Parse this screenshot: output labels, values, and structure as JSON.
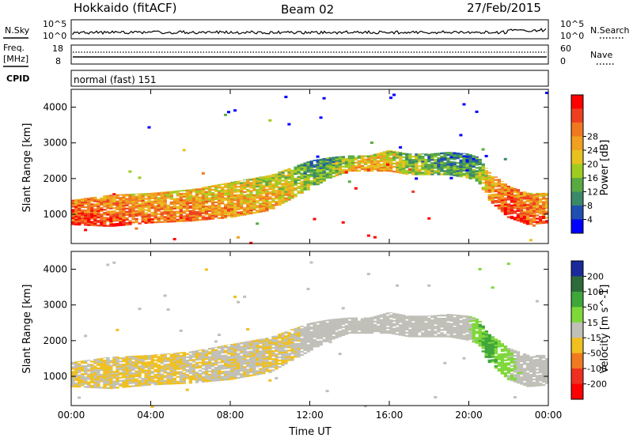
{
  "header": {
    "station": "Hokkaido (fitACF)",
    "beam": "Beam 02",
    "date": "27/Feb/2015"
  },
  "noise_panel": {
    "label_left": "N.Sky",
    "label_right": "N.Search",
    "left_ticks": [
      "10^5",
      "10^0"
    ],
    "right_ticks": [
      "10^5",
      "10^0"
    ]
  },
  "freq_panel": {
    "label_left_1": "Freq.",
    "label_left_2": "[MHz]",
    "label_right": "Nave",
    "left_ticks": [
      "18",
      "8"
    ],
    "right_ticks": [
      "60",
      "0"
    ]
  },
  "cpid_panel": {
    "label": "CPID",
    "mode_text": "normal (fast) 151"
  },
  "chart_data": [
    {
      "type": "heatmap",
      "quantity": "Power",
      "ylabel": "Slant Range [km]",
      "colorbar_label": "Power [dB]",
      "colorbar_ticks": [
        "4",
        "8",
        "12",
        "16",
        "20",
        "24",
        "28"
      ],
      "colorbar_colors": [
        "#0000ff",
        "#1f4fb0",
        "#3a8a6a",
        "#5aaa44",
        "#a0cc22",
        "#e8c020",
        "#f0a020",
        "#f07820",
        "#ee4020",
        "#ff0000"
      ],
      "ylim": [
        180,
        4500
      ],
      "y_ticks": [
        "1000",
        "2000",
        "3000",
        "4000"
      ],
      "x_ticks": [
        "00:00",
        "04:00",
        "08:00",
        "12:00",
        "16:00",
        "20:00",
        "00:00"
      ],
      "echo_band": {
        "time_hours": [
          0,
          2,
          4,
          6,
          8,
          10,
          11,
          12,
          13,
          14,
          15,
          16,
          17,
          18,
          19,
          20,
          20.5,
          21,
          22,
          23,
          24
        ],
        "lower_km": [
          700,
          650,
          750,
          800,
          900,
          1100,
          1400,
          1700,
          2000,
          2200,
          2200,
          2200,
          2100,
          2100,
          2100,
          2000,
          1900,
          1400,
          900,
          700,
          750
        ],
        "upper_km": [
          1400,
          1550,
          1600,
          1700,
          1900,
          2100,
          2300,
          2500,
          2600,
          2650,
          2650,
          2800,
          2700,
          2700,
          2750,
          2700,
          2600,
          2200,
          1800,
          1600,
          1600
        ],
        "power_db": [
          28,
          26,
          24,
          24,
          22,
          20,
          18,
          14,
          14,
          18,
          22,
          20,
          16,
          14,
          12,
          12,
          14,
          22,
          28,
          26,
          24
        ]
      }
    },
    {
      "type": "heatmap",
      "quantity": "Velocity",
      "ylabel": "Slant Range [km]",
      "colorbar_label": "Velocity [m s^-1]",
      "colorbar_ticks": [
        "200",
        "100",
        "50",
        "15",
        "-15",
        "-50",
        "-100",
        "-200"
      ],
      "colorbar_colors": [
        "#1a2a9a",
        "#2f6a3a",
        "#3fa63a",
        "#7fd83a",
        "#c0c0b8",
        "#f0c020",
        "#f07a20",
        "#ee3020",
        "#ff0000"
      ],
      "ylim": [
        180,
        4500
      ],
      "y_ticks": [
        "1000",
        "2000",
        "3000",
        "4000"
      ],
      "x_ticks": [
        "00:00",
        "04:00",
        "08:00",
        "12:00",
        "16:00",
        "20:00",
        "00:00"
      ],
      "xlabel": "Time UT",
      "echo_band": {
        "time_hours": [
          0,
          2,
          4,
          6,
          8,
          10,
          11,
          12,
          13,
          14,
          15,
          16,
          17,
          18,
          19,
          20,
          20.5,
          21,
          22,
          23,
          24
        ],
        "lower_km": [
          700,
          650,
          750,
          800,
          900,
          1100,
          1400,
          1700,
          2000,
          2200,
          2200,
          2200,
          2100,
          2100,
          2100,
          2000,
          1900,
          1400,
          900,
          700,
          750
        ],
        "upper_km": [
          1400,
          1550,
          1600,
          1700,
          1900,
          2100,
          2300,
          2500,
          2600,
          2650,
          2650,
          2800,
          2700,
          2700,
          2750,
          2700,
          2600,
          2200,
          1800,
          1600,
          1600
        ],
        "velocity": [
          -15,
          -15,
          -20,
          -15,
          -10,
          -15,
          -15,
          0,
          0,
          0,
          0,
          0,
          0,
          0,
          0,
          5,
          40,
          60,
          20,
          0,
          0
        ]
      }
    }
  ]
}
